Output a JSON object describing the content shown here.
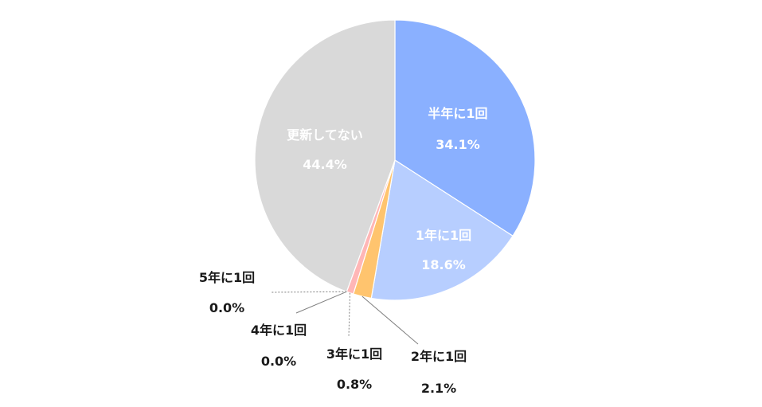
{
  "chart_data": {
    "type": "pie",
    "slices": [
      {
        "label": "半年に1回",
        "value": 34.1,
        "value_label": "34.1%",
        "color": "#8AB0FF"
      },
      {
        "label": "1年に1回",
        "value": 18.6,
        "value_label": "18.6%",
        "color": "#B7CEFF"
      },
      {
        "label": "2年に1回",
        "value": 2.1,
        "value_label": "2.1%",
        "color": "#FFC46E"
      },
      {
        "label": "3年に1回",
        "value": 0.8,
        "value_label": "0.8%",
        "color": "#FFB6B6"
      },
      {
        "label": "4年に1回",
        "value": 0.0,
        "value_label": "0.0%",
        "color": "#FFCCCC"
      },
      {
        "label": "5年に1回",
        "value": 0.0,
        "value_label": "0.0%",
        "color": "#E8E8E8"
      },
      {
        "label": "更新してない",
        "value": 44.4,
        "value_label": "44.4%",
        "color": "#D9D9D9"
      }
    ],
    "start_angle": "12 o'clock",
    "direction": "clockwise",
    "legend": "none"
  }
}
